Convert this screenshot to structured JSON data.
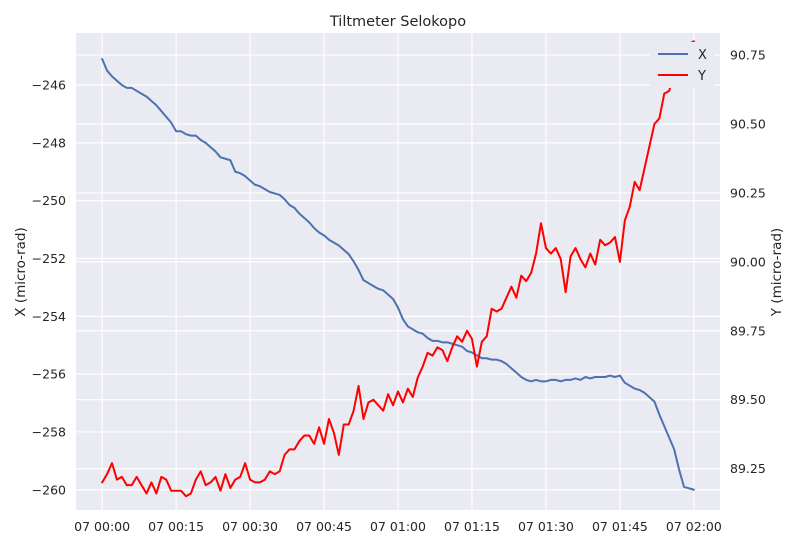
{
  "chart_data": {
    "type": "line",
    "title": "Tiltmeter Selokopo",
    "xlabel": "",
    "ylabel_left": "X (micro-rad)",
    "ylabel_right": "Y (micro-rad)",
    "x_unit": "minutes",
    "x_ticks": [
      {
        "value": 0,
        "label": "07 00:00"
      },
      {
        "value": 15,
        "label": "07 00:15"
      },
      {
        "value": 30,
        "label": "07 00:30"
      },
      {
        "value": 45,
        "label": "07 00:45"
      },
      {
        "value": 60,
        "label": "07 01:00"
      },
      {
        "value": 75,
        "label": "07 01:15"
      },
      {
        "value": 90,
        "label": "07 01:30"
      },
      {
        "value": 105,
        "label": "07 01:45"
      },
      {
        "value": 120,
        "label": "07 02:00"
      }
    ],
    "xlim": [
      -5.3,
      125.3
    ],
    "left_axis": {
      "ylim": [
        -260.7,
        -244.2
      ],
      "ticks": [
        {
          "value": -246,
          "label": "−246"
        },
        {
          "value": -248,
          "label": "−248"
        },
        {
          "value": -250,
          "label": "−250"
        },
        {
          "value": -252,
          "label": "−252"
        },
        {
          "value": -254,
          "label": "−254"
        },
        {
          "value": -256,
          "label": "−256"
        },
        {
          "value": -258,
          "label": "−258"
        },
        {
          "value": -260,
          "label": "−260"
        }
      ]
    },
    "right_axis": {
      "ylim": [
        89.1,
        90.83
      ],
      "ticks": [
        {
          "value": 90.75,
          "label": "90.75"
        },
        {
          "value": 90.5,
          "label": "90.50"
        },
        {
          "value": 90.25,
          "label": "90.25"
        },
        {
          "value": 90.0,
          "label": "90.00"
        },
        {
          "value": 89.75,
          "label": "89.75"
        },
        {
          "value": 89.5,
          "label": "89.50"
        },
        {
          "value": 89.25,
          "label": "89.25"
        }
      ]
    },
    "grid": true,
    "legend_position": "top-right",
    "series": [
      {
        "name": "X",
        "axis": "left",
        "color": "#4c72b0",
        "x": [
          0,
          1,
          2,
          3,
          4,
          5,
          6,
          7,
          8,
          9,
          10,
          11,
          12,
          13,
          14,
          15,
          16,
          17,
          18,
          19,
          20,
          21,
          22,
          23,
          24,
          25,
          26,
          27,
          28,
          29,
          30,
          31,
          32,
          33,
          34,
          35,
          36,
          37,
          38,
          39,
          40,
          41,
          42,
          43,
          44,
          45,
          46,
          47,
          48,
          49,
          50,
          51,
          52,
          53,
          54,
          55,
          56,
          57,
          58,
          59,
          60,
          61,
          62,
          63,
          64,
          65,
          66,
          67,
          68,
          69,
          70,
          71,
          72,
          73,
          74,
          75,
          76,
          77,
          78,
          79,
          80,
          81,
          82,
          83,
          84,
          85,
          86,
          87,
          88,
          89,
          90,
          91,
          92,
          93,
          94,
          95,
          96,
          97,
          98,
          99,
          100,
          101,
          102,
          103,
          104,
          105,
          106,
          107,
          108,
          109,
          110,
          111,
          112,
          113,
          114,
          115,
          116,
          117,
          118,
          119,
          120
        ],
        "values": [
          -245.1,
          -245.5,
          -245.7,
          -245.85,
          -246.0,
          -246.1,
          -246.1,
          -246.2,
          -246.3,
          -246.4,
          -246.55,
          -246.7,
          -246.9,
          -247.1,
          -247.3,
          -247.6,
          -247.6,
          -247.7,
          -247.75,
          -247.75,
          -247.9,
          -248.0,
          -248.15,
          -248.3,
          -248.5,
          -248.55,
          -248.6,
          -249.0,
          -249.05,
          -249.15,
          -249.3,
          -249.45,
          -249.5,
          -249.6,
          -249.7,
          -249.75,
          -249.8,
          -249.95,
          -250.15,
          -250.25,
          -250.45,
          -250.6,
          -250.75,
          -250.95,
          -251.1,
          -251.2,
          -251.35,
          -251.45,
          -251.55,
          -251.7,
          -251.85,
          -252.1,
          -252.4,
          -252.75,
          -252.85,
          -252.95,
          -253.05,
          -253.1,
          -253.25,
          -253.4,
          -253.7,
          -254.1,
          -254.35,
          -254.45,
          -254.55,
          -254.6,
          -254.75,
          -254.85,
          -254.85,
          -254.9,
          -254.9,
          -254.95,
          -255.0,
          -255.05,
          -255.2,
          -255.25,
          -255.35,
          -255.45,
          -255.45,
          -255.5,
          -255.5,
          -255.55,
          -255.65,
          -255.8,
          -255.95,
          -256.1,
          -256.2,
          -256.25,
          -256.2,
          -256.25,
          -256.25,
          -256.2,
          -256.2,
          -256.25,
          -256.2,
          -256.2,
          -256.15,
          -256.2,
          -256.1,
          -256.15,
          -256.1,
          -256.1,
          -256.1,
          -256.05,
          -256.1,
          -256.05,
          -256.3,
          -256.4,
          -256.5,
          -256.55,
          -256.65,
          -256.8,
          -256.95,
          -257.4,
          -257.8,
          -258.2,
          -258.6,
          -259.3,
          -259.9,
          -259.95,
          -260.0
        ]
      },
      {
        "name": "Y",
        "axis": "right",
        "color": "#ff0000",
        "x": [
          0,
          1,
          2,
          3,
          4,
          5,
          6,
          7,
          8,
          9,
          10,
          11,
          12,
          13,
          14,
          15,
          16,
          17,
          18,
          19,
          20,
          21,
          22,
          23,
          24,
          25,
          26,
          27,
          28,
          29,
          30,
          31,
          32,
          33,
          34,
          35,
          36,
          37,
          38,
          39,
          40,
          41,
          42,
          43,
          44,
          45,
          46,
          47,
          48,
          49,
          50,
          51,
          52,
          53,
          54,
          55,
          56,
          57,
          58,
          59,
          60,
          61,
          62,
          63,
          64,
          65,
          66,
          67,
          68,
          69,
          70,
          71,
          72,
          73,
          74,
          75,
          76,
          77,
          78,
          79,
          80,
          81,
          82,
          83,
          84,
          85,
          86,
          87,
          88,
          89,
          90,
          91,
          92,
          93,
          94,
          95,
          96,
          97,
          98,
          99,
          100,
          101,
          102,
          103,
          104,
          105,
          106,
          107,
          108,
          109,
          110,
          111,
          112,
          113,
          114,
          115,
          116,
          117,
          118,
          119,
          120
        ],
        "values": [
          89.2,
          89.23,
          89.27,
          89.21,
          89.22,
          89.19,
          89.19,
          89.22,
          89.19,
          89.16,
          89.2,
          89.16,
          89.22,
          89.21,
          89.17,
          89.17,
          89.17,
          89.15,
          89.16,
          89.21,
          89.24,
          89.19,
          89.2,
          89.22,
          89.17,
          89.23,
          89.18,
          89.21,
          89.22,
          89.27,
          89.21,
          89.2,
          89.2,
          89.21,
          89.24,
          89.23,
          89.24,
          89.3,
          89.32,
          89.32,
          89.35,
          89.37,
          89.37,
          89.34,
          89.4,
          89.34,
          89.43,
          89.38,
          89.3,
          89.41,
          89.41,
          89.46,
          89.55,
          89.43,
          89.49,
          89.5,
          89.48,
          89.46,
          89.52,
          89.48,
          89.53,
          89.49,
          89.54,
          89.51,
          89.58,
          89.62,
          89.67,
          89.66,
          89.69,
          89.68,
          89.64,
          89.69,
          89.73,
          89.71,
          89.75,
          89.72,
          89.62,
          89.71,
          89.73,
          89.83,
          89.82,
          89.83,
          89.87,
          89.91,
          89.87,
          89.95,
          89.93,
          89.96,
          90.03,
          90.14,
          90.05,
          90.03,
          90.05,
          90.01,
          89.89,
          90.02,
          90.05,
          90.01,
          89.98,
          90.03,
          89.99,
          90.08,
          90.06,
          90.07,
          90.09,
          90.0,
          90.15,
          90.2,
          90.29,
          90.26,
          90.34,
          90.42,
          90.5,
          90.52,
          90.61,
          90.62,
          90.69,
          90.75,
          90.76,
          90.79,
          90.8
        ]
      }
    ]
  }
}
